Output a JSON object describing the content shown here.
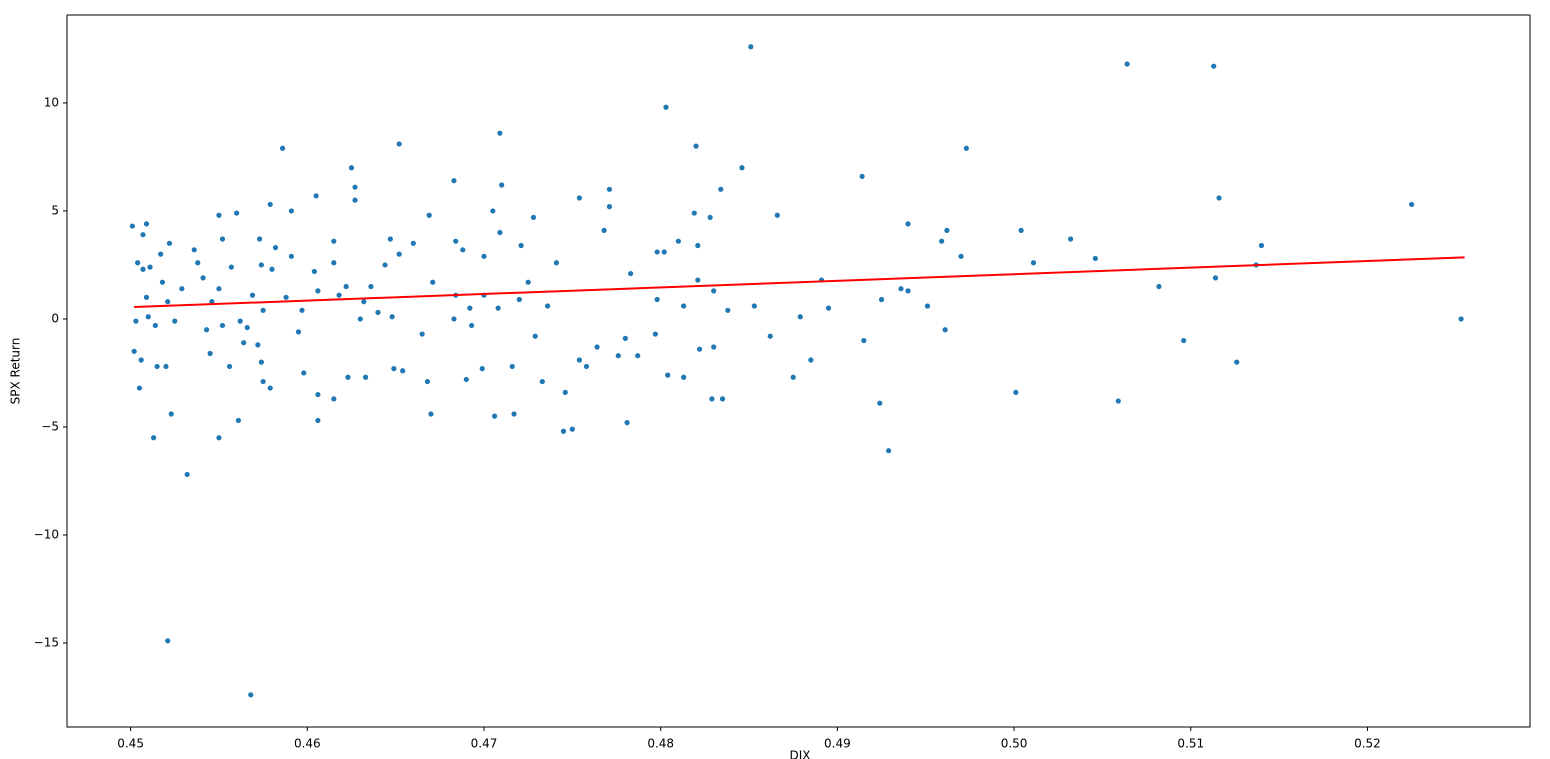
{
  "chart_data": {
    "type": "scatter",
    "xlabel": "DIX",
    "ylabel": "SPX Return",
    "xlim": [
      0.4464,
      0.5292
    ],
    "ylim": [
      -18.89,
      14.07
    ],
    "xticks": [
      0.45,
      0.46,
      0.47,
      0.48,
      0.49,
      {
        "value": 0.5,
        "label": "0.50"
      },
      0.51,
      0.52
    ],
    "yticks": [
      {
        "value": -15,
        "label": "−15"
      },
      {
        "value": -10,
        "label": "−10"
      },
      {
        "value": -5,
        "label": "−5"
      },
      0,
      5,
      10
    ],
    "series": [
      {
        "type": "scatter",
        "color": "#1f77b4",
        "x": [
          0.4851,
          0.5064,
          0.5113,
          0.4803,
          0.4709,
          0.4652,
          0.4586,
          0.482,
          0.4973,
          0.4625,
          0.4846,
          0.4914,
          0.4683,
          0.5116,
          0.5225,
          0.4866,
          0.494,
          0.5004,
          0.5032,
          0.514,
          0.4962,
          0.4959,
          0.497,
          0.5011,
          0.5046,
          0.5082,
          0.5114,
          0.5137,
          0.5253,
          0.5096,
          0.5126,
          0.5001,
          0.5059,
          0.4924,
          0.4929,
          0.4915,
          0.4925,
          0.4936,
          0.494,
          0.4951,
          0.4961,
          0.4891,
          0.4895,
          0.4879,
          0.4862,
          0.4875,
          0.4885,
          0.4853,
          0.4521,
          0.4568,
          0.4532,
          0.4513,
          0.455,
          0.4561,
          0.4523,
          0.4745,
          0.475,
          0.4706,
          0.4717,
          0.467,
          0.4606,
          0.4781,
          0.4829,
          0.4835,
          0.4733,
          0.4746,
          0.469,
          0.4668,
          0.4633,
          0.4623,
          0.4598,
          0.4575,
          0.4579,
          0.4505,
          0.4615,
          0.4606,
          0.4804,
          0.4813,
          0.483,
          0.4822,
          0.4776,
          0.4787,
          0.4758,
          0.4699,
          0.4716,
          0.4649,
          0.4654,
          0.4515,
          0.452,
          0.4502,
          0.4506,
          0.4501,
          0.4509,
          0.4507,
          0.455,
          0.456,
          0.4579,
          0.4591,
          0.4605,
          0.4627,
          0.4627,
          0.4669,
          0.4705,
          0.471,
          0.4728,
          0.4754,
          0.4771,
          0.4771,
          0.4768,
          0.4819,
          0.4802,
          0.4798,
          0.481,
          0.4821,
          0.4828,
          0.4834,
          0.4821,
          0.483,
          0.4838,
          0.4783,
          0.4798,
          0.4813,
          0.4797,
          0.478,
          0.4764,
          0.4754,
          0.4736,
          0.4725,
          0.4741,
          0.4721,
          0.4709,
          0.47,
          0.4684,
          0.4688,
          0.4671,
          0.4684,
          0.4692,
          0.4683,
          0.4693,
          0.47,
          0.4708,
          0.472,
          0.4729,
          0.4665,
          0.466,
          0.4647,
          0.4652,
          0.4644,
          0.4636,
          0.464,
          0.4648,
          0.463,
          0.4632,
          0.4622,
          0.4618,
          0.4615,
          0.4615,
          0.4604,
          0.4606,
          0.4597,
          0.4595,
          0.4588,
          0.4591,
          0.4582,
          0.458,
          0.4574,
          0.4573,
          0.4569,
          0.4575,
          0.4566,
          0.4572,
          0.4564,
          0.4557,
          0.4552,
          0.455,
          0.4546,
          0.4543,
          0.4545,
          0.4538,
          0.4541,
          0.4536,
          0.4529,
          0.4525,
          0.4521,
          0.4518,
          0.4517,
          0.4511,
          0.4507,
          0.4504,
          0.4509,
          0.451,
          0.4503,
          0.4514,
          0.4522,
          0.4552,
          0.4562,
          0.4574,
          0.4556
        ],
        "values": [
          12.6,
          11.8,
          11.7,
          9.8,
          8.6,
          8.1,
          7.9,
          8.0,
          7.9,
          7.0,
          7.0,
          6.6,
          6.4,
          5.6,
          5.3,
          4.8,
          4.4,
          4.1,
          3.7,
          3.4,
          4.1,
          3.6,
          2.9,
          2.6,
          2.8,
          1.5,
          1.9,
          2.5,
          0.0,
          -1.0,
          -2.0,
          -3.4,
          -3.8,
          -3.9,
          -6.1,
          -1.0,
          0.9,
          1.4,
          1.3,
          0.6,
          -0.5,
          1.8,
          0.5,
          0.1,
          -0.8,
          -2.7,
          -1.9,
          0.6,
          -14.9,
          -17.4,
          -7.2,
          -5.5,
          -5.5,
          -4.7,
          -4.4,
          -5.2,
          -5.1,
          -4.5,
          -4.4,
          -4.4,
          -4.7,
          -4.8,
          -3.7,
          -3.7,
          -2.9,
          -3.4,
          -2.8,
          -2.9,
          -2.7,
          -2.7,
          -2.5,
          -2.9,
          -3.2,
          -3.2,
          -3.7,
          -3.5,
          -2.6,
          -2.7,
          -1.3,
          -1.4,
          -1.7,
          -1.7,
          -2.2,
          -2.3,
          -2.2,
          -2.3,
          -2.4,
          -2.2,
          -2.2,
          -1.5,
          -1.9,
          4.3,
          4.4,
          3.9,
          4.8,
          4.9,
          5.3,
          5.0,
          5.7,
          6.1,
          5.5,
          4.8,
          5.0,
          6.2,
          4.7,
          5.6,
          6.0,
          5.2,
          4.1,
          4.9,
          3.1,
          3.1,
          3.6,
          3.4,
          4.7,
          6.0,
          1.8,
          1.3,
          0.4,
          2.1,
          0.9,
          0.6,
          -0.7,
          -0.9,
          -1.3,
          -1.9,
          0.6,
          1.7,
          2.6,
          3.4,
          4.0,
          2.9,
          3.6,
          3.2,
          1.7,
          1.1,
          0.5,
          0.0,
          -0.3,
          1.1,
          0.5,
          0.9,
          -0.8,
          -0.7,
          3.5,
          3.7,
          3.0,
          2.5,
          1.5,
          0.3,
          0.1,
          0.0,
          0.8,
          1.5,
          1.1,
          2.6,
          3.6,
          2.2,
          1.3,
          0.4,
          -0.6,
          1.0,
          2.9,
          3.3,
          2.3,
          2.5,
          3.7,
          1.1,
          0.4,
          -0.4,
          -1.2,
          -1.1,
          2.4,
          3.7,
          1.4,
          0.8,
          -0.5,
          -1.6,
          2.6,
          1.9,
          3.2,
          1.4,
          -0.1,
          0.8,
          1.7,
          3.0,
          2.4,
          2.3,
          2.6,
          1.0,
          0.1,
          -0.1,
          -0.3,
          3.5,
          -0.3,
          -0.1,
          -2.0,
          -2.2
        ]
      },
      {
        "type": "line",
        "color": "#ff0000",
        "x": [
          0.4502,
          0.5255
        ],
        "values": [
          0.55,
          2.85
        ]
      }
    ]
  }
}
